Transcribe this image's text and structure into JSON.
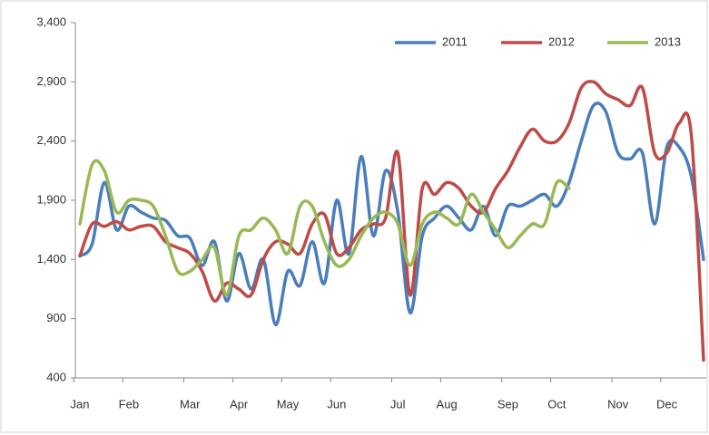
{
  "chart_data": {
    "type": "line",
    "categories": [
      "Jan",
      null,
      null,
      null,
      "Feb",
      null,
      null,
      null,
      null,
      "Mar",
      null,
      null,
      null,
      "Apr",
      null,
      null,
      null,
      "May",
      null,
      null,
      null,
      "Jun",
      null,
      null,
      null,
      null,
      "Jul",
      null,
      null,
      null,
      "Aug",
      null,
      null,
      null,
      null,
      "Sep",
      null,
      null,
      null,
      "Oct",
      null,
      null,
      null,
      null,
      "Nov",
      null,
      null,
      null,
      "Dec",
      null,
      null,
      null
    ],
    "series": [
      {
        "name": "2011",
        "color": "#4a7ebb",
        "values": [
          1430,
          1530,
          2050,
          1650,
          1850,
          1800,
          1750,
          1730,
          1600,
          1580,
          1350,
          1550,
          1050,
          1450,
          1150,
          1400,
          850,
          1300,
          1180,
          1550,
          1200,
          1900,
          1450,
          2270,
          1600,
          2150,
          1800,
          950,
          1600,
          1750,
          1850,
          1750,
          1650,
          1850,
          1600,
          1850,
          1850,
          1900,
          1950,
          1850,
          2050,
          2400,
          2700,
          2650,
          2300,
          2250,
          2300,
          1700,
          2350,
          2350,
          2100,
          1400
        ]
      },
      {
        "name": "2012",
        "color": "#be4b48",
        "values": [
          1430,
          1700,
          1680,
          1720,
          1650,
          1680,
          1680,
          1550,
          1500,
          1450,
          1300,
          1050,
          1200,
          1150,
          1100,
          1400,
          1550,
          1530,
          1450,
          1700,
          1780,
          1450,
          1500,
          1650,
          1700,
          1750,
          2300,
          1100,
          2000,
          1950,
          2050,
          2000,
          1850,
          1800,
          2000,
          2150,
          2350,
          2500,
          2400,
          2400,
          2550,
          2850,
          2900,
          2800,
          2750,
          2700,
          2850,
          2300,
          2300,
          2550,
          2450,
          550
        ]
      },
      {
        "name": "2013",
        "color": "#98b954",
        "values": [
          1700,
          2200,
          2150,
          1800,
          1900,
          1900,
          1850,
          1600,
          1300,
          1300,
          1400,
          1500,
          1100,
          1600,
          1650,
          1750,
          1650,
          1450,
          1850,
          1850,
          1550,
          1350,
          1400,
          1600,
          1750,
          1800,
          1700,
          1350,
          1700,
          1800,
          1750,
          1700,
          1950,
          1800,
          1650,
          1500,
          1600,
          1700,
          1700,
          2050,
          2000,
          null,
          null,
          null,
          null,
          null,
          null,
          null,
          null,
          null,
          null,
          null
        ]
      }
    ],
    "ylim": [
      400,
      3400
    ],
    "yticks": [
      400,
      900,
      {
        "value": 1400,
        "label": "1,400"
      },
      {
        "value": 1900,
        "label": "1,900"
      },
      {
        "value": 2400,
        "label": "2,400"
      },
      {
        "value": 2900,
        "label": "2,900"
      },
      {
        "value": 3400,
        "label": "3,400"
      }
    ],
    "legend": "top-right",
    "grid": false
  }
}
